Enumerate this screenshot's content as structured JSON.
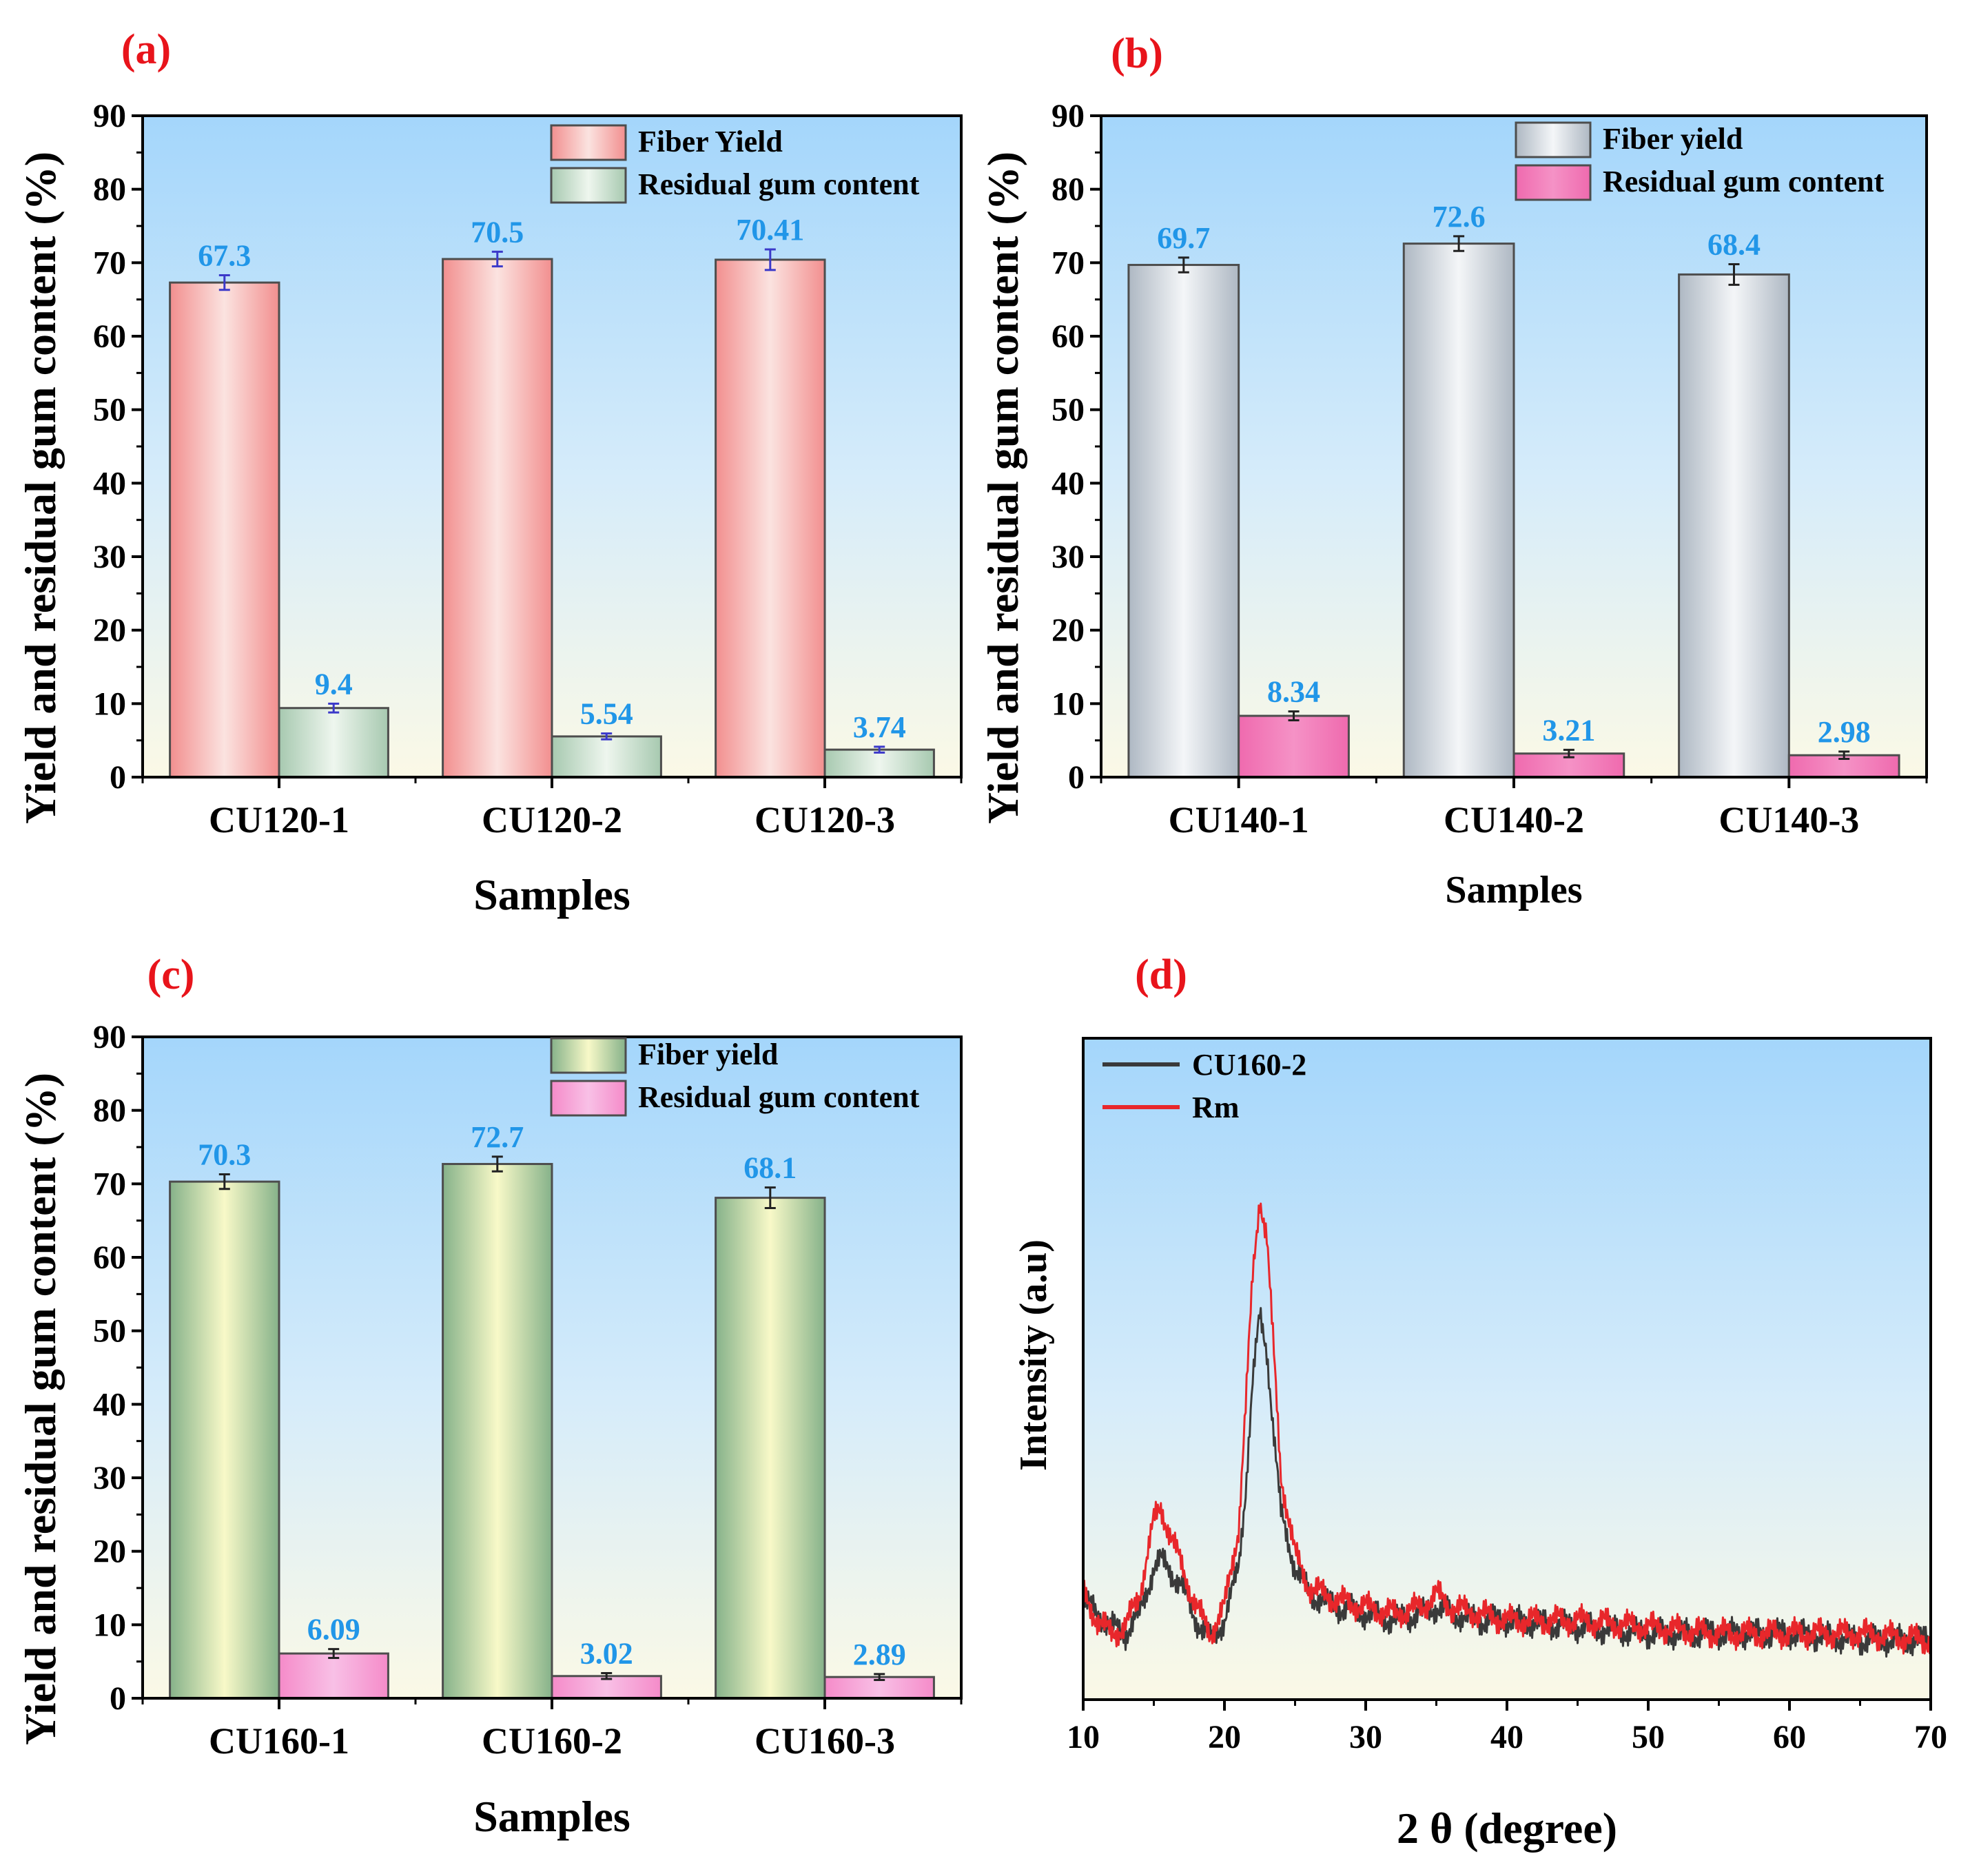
{
  "panels": [
    {
      "label": "(a)",
      "ylabel": "Yield and residual gum content (%)",
      "xlabel": "Samples",
      "legend": [
        "Fiber Yield",
        "Residual gum content"
      ]
    },
    {
      "label": "(b)",
      "ylabel": "Yield and residual gum content (%)",
      "xlabel": "Samples",
      "legend": [
        "Fiber yield",
        "Residual gum content"
      ]
    },
    {
      "label": "(c)",
      "ylabel": "Yield and residual gum content (%)",
      "xlabel": "Samples",
      "legend": [
        "Fiber yield",
        "Residual gum content"
      ]
    },
    {
      "label": "(d)",
      "ylabel": "Intensity (a.u)",
      "xlabel": "2 θ (degree)",
      "legend": [
        "CU160-2",
        "Rm"
      ]
    }
  ],
  "chart_data": [
    {
      "type": "bar",
      "title": "(a)",
      "categories": [
        "CU120-1",
        "CU120-2",
        "CU120-3"
      ],
      "series": [
        {
          "name": "Fiber Yield",
          "values": [
            67.3,
            70.5,
            70.41
          ],
          "labels": [
            "67.3",
            "70.5",
            "70.41"
          ],
          "errors": [
            1.0,
            1.0,
            1.4
          ]
        },
        {
          "name": "Residual gum content",
          "values": [
            9.4,
            5.54,
            3.74
          ],
          "labels": [
            "9.4",
            "5.54",
            "3.74"
          ],
          "errors": [
            0.6,
            0.4,
            0.4
          ]
        }
      ],
      "xlabel": "Samples",
      "ylabel": "Yield and residual gum content (%)",
      "ylim": [
        0,
        90
      ],
      "yticks": [
        0,
        10,
        20,
        30,
        40,
        50,
        60,
        70,
        80,
        90
      ],
      "legend_position": "top-right",
      "colors": {
        "series0": "#f4a6a6",
        "series1": "#b5d6bf"
      }
    },
    {
      "type": "bar",
      "title": "(b)",
      "categories": [
        "CU140-1",
        "CU140-2",
        "CU140-3"
      ],
      "series": [
        {
          "name": "Fiber yield",
          "values": [
            69.7,
            72.6,
            68.4
          ],
          "labels": [
            "69.7",
            "72.6",
            "68.4"
          ],
          "errors": [
            1.0,
            1.0,
            1.4
          ]
        },
        {
          "name": "Residual gum content",
          "values": [
            8.34,
            3.21,
            2.98
          ],
          "labels": [
            "8.34",
            "3.21",
            "2.98"
          ],
          "errors": [
            0.6,
            0.5,
            0.5
          ]
        }
      ],
      "xlabel": "Samples",
      "ylabel": "Yield and residual gum content (%)",
      "ylim": [
        0,
        90
      ],
      "yticks": [
        0,
        10,
        20,
        30,
        40,
        50,
        60,
        70,
        80,
        90
      ],
      "legend_position": "top-right",
      "colors": {
        "series0": "#c3ccd6",
        "series1": "#f06fb6"
      }
    },
    {
      "type": "bar",
      "title": "(c)",
      "categories": [
        "CU160-1",
        "CU160-2",
        "CU160-3"
      ],
      "series": [
        {
          "name": "Fiber yield",
          "values": [
            70.3,
            72.7,
            68.1
          ],
          "labels": [
            "70.3",
            "72.7",
            "68.1"
          ],
          "errors": [
            1.0,
            1.0,
            1.4
          ]
        },
        {
          "name": "Residual gum content",
          "values": [
            6.09,
            3.02,
            2.89
          ],
          "labels": [
            "6.09",
            "3.02",
            "2.89"
          ],
          "errors": [
            0.6,
            0.4,
            0.4
          ]
        }
      ],
      "xlabel": "Samples",
      "ylabel": "Yield and residual gum content (%)",
      "ylim": [
        0,
        90
      ],
      "yticks": [
        0,
        10,
        20,
        30,
        40,
        50,
        60,
        70,
        80,
        90
      ],
      "legend_position": "top-right",
      "colors": {
        "series0": "#a9cf9c",
        "series1": "#f59ed6"
      }
    },
    {
      "type": "line",
      "title": "(d)",
      "xlabel": "2 θ (degree)",
      "ylabel": "Intensity (a.u)",
      "xlim": [
        10,
        70
      ],
      "xticks": [
        10,
        20,
        30,
        40,
        50,
        60,
        70
      ],
      "ylim": [
        0,
        100
      ],
      "legend_position": "top-left",
      "series": [
        {
          "name": "CU160-2",
          "color": "#3a3a3a",
          "x": [
            10,
            11,
            12,
            13,
            14,
            15,
            15.5,
            16,
            17,
            18,
            19,
            20,
            21,
            21.5,
            22,
            22.5,
            23,
            23.5,
            24,
            25,
            26,
            27,
            28,
            30,
            32,
            34,
            35,
            36,
            38,
            40,
            45,
            50,
            55,
            60,
            65,
            70
          ],
          "y": [
            15,
            13,
            11,
            10,
            13,
            20,
            21,
            20,
            17,
            12,
            9,
            12,
            20,
            32,
            48,
            58,
            53,
            40,
            28,
            20,
            16,
            15,
            14,
            13,
            12,
            13,
            14,
            13,
            12,
            12,
            11,
            10,
            10,
            10,
            9,
            9
          ]
        },
        {
          "name": "Rm",
          "color": "#e8272b",
          "x": [
            10,
            11,
            12,
            13,
            14,
            15,
            15.5,
            16,
            17,
            18,
            19,
            20,
            21,
            21.5,
            22,
            22.5,
            23,
            23.5,
            24,
            25,
            26,
            27,
            28,
            30,
            32,
            34,
            35,
            36,
            38,
            40,
            45,
            50,
            55,
            60,
            65,
            70
          ],
          "y": [
            16,
            12,
            10,
            11,
            16,
            27,
            29,
            26,
            20,
            14,
            10,
            14,
            26,
            44,
            64,
            76,
            70,
            52,
            34,
            22,
            17,
            16,
            15,
            14,
            13,
            14,
            16,
            14,
            13,
            12,
            12,
            11,
            10,
            10,
            10,
            9
          ]
        }
      ]
    }
  ]
}
